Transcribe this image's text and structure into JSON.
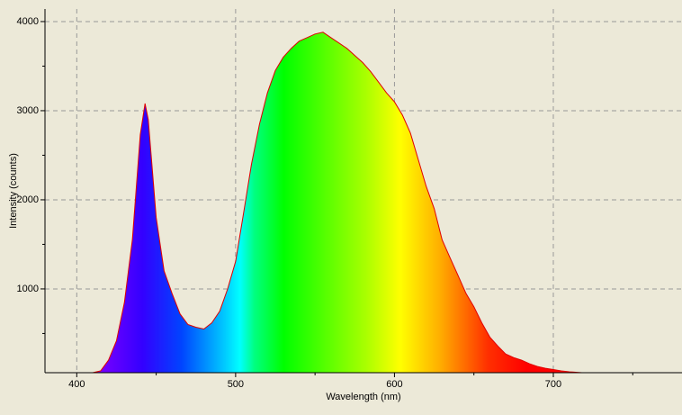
{
  "chart_data": {
    "type": "area",
    "xlabel": "Wavelength (nm)",
    "ylabel": "Intensity (counts)",
    "x": [
      410,
      415,
      420,
      425,
      430,
      435,
      440,
      443,
      445,
      450,
      455,
      460,
      465,
      470,
      475,
      480,
      485,
      490,
      495,
      500,
      505,
      510,
      515,
      520,
      525,
      530,
      535,
      540,
      545,
      550,
      555,
      560,
      565,
      570,
      575,
      580,
      585,
      590,
      595,
      600,
      605,
      610,
      615,
      620,
      625,
      630,
      635,
      640,
      645,
      650,
      655,
      660,
      665,
      670,
      675,
      680,
      685,
      690,
      695,
      700,
      705,
      710,
      718
    ],
    "series": [
      {
        "color": "#e00000",
        "values": [
          60,
          80,
          200,
          420,
          850,
          1550,
          2730,
          3080,
          2900,
          1800,
          1200,
          950,
          720,
          600,
          570,
          550,
          620,
          750,
          1000,
          1310,
          1850,
          2400,
          2850,
          3200,
          3450,
          3600,
          3700,
          3780,
          3820,
          3860,
          3880,
          3820,
          3760,
          3700,
          3620,
          3540,
          3440,
          3320,
          3200,
          3100,
          2950,
          2750,
          2450,
          2150,
          1900,
          1550,
          1350,
          1150,
          950,
          800,
          620,
          460,
          360,
          270,
          230,
          200,
          160,
          130,
          110,
          95,
          80,
          70,
          60
        ]
      }
    ],
    "xlim": [
      380,
      781
    ],
    "ylim": [
      60,
      4141
    ],
    "xticks": [
      400,
      500,
      600,
      700
    ],
    "yticks": [
      1000,
      2000,
      3000,
      4000
    ],
    "xminor": [
      450,
      550,
      650,
      750
    ],
    "yminor": [
      500,
      1500,
      2500,
      3500
    ],
    "grid": true
  }
}
